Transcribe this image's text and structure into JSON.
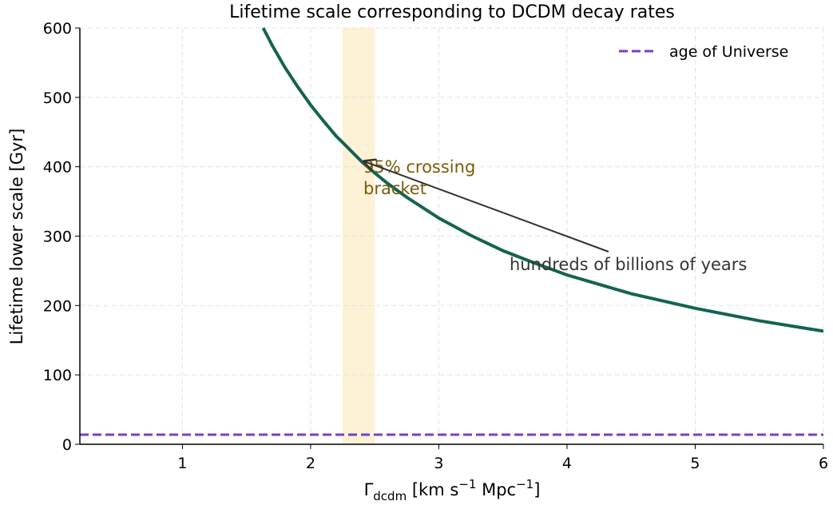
{
  "chart_data": {
    "type": "line",
    "title": "Lifetime scale corresponding to DCDM decay rates",
    "xlabel": [
      "Γ",
      "dcdm",
      " [km s",
      "−1",
      " Mpc",
      "−1",
      "]"
    ],
    "ylabel": "Lifetime lower scale [Gyr]",
    "xlim": [
      0.2,
      6
    ],
    "ylim": [
      0,
      600
    ],
    "xticks": [
      1,
      2,
      3,
      4,
      5,
      6
    ],
    "yticks": [
      0,
      100,
      200,
      300,
      400,
      500,
      600
    ],
    "grid": true,
    "legend": "upper right",
    "series": [
      {
        "name": null,
        "color": "#146350",
        "x": [
          1.63,
          1.7,
          1.75,
          1.8,
          1.9,
          2,
          2.1,
          2.2,
          2.25,
          2.4,
          2.5,
          2.6,
          2.75,
          3,
          3.25,
          3.5,
          3.75,
          4,
          4.5,
          5,
          5.5,
          6
        ],
        "values": [
          600,
          575,
          559,
          543,
          515,
          489,
          466,
          444,
          435,
          407,
          391,
          376,
          356,
          326,
          301,
          279,
          261,
          244,
          217,
          196,
          178,
          163
        ]
      },
      {
        "name": "age of Universe",
        "color": "#7b3fbf",
        "style": "dashed",
        "values": [
          13.8
        ]
      }
    ],
    "band": {
      "x": [
        2.25,
        2.5
      ],
      "color": "#fdf1d6",
      "label": [
        "95% crossing",
        "bracket"
      ],
      "label_color": "#7a5c0a"
    },
    "annotation": "hundreds of billions of years"
  }
}
